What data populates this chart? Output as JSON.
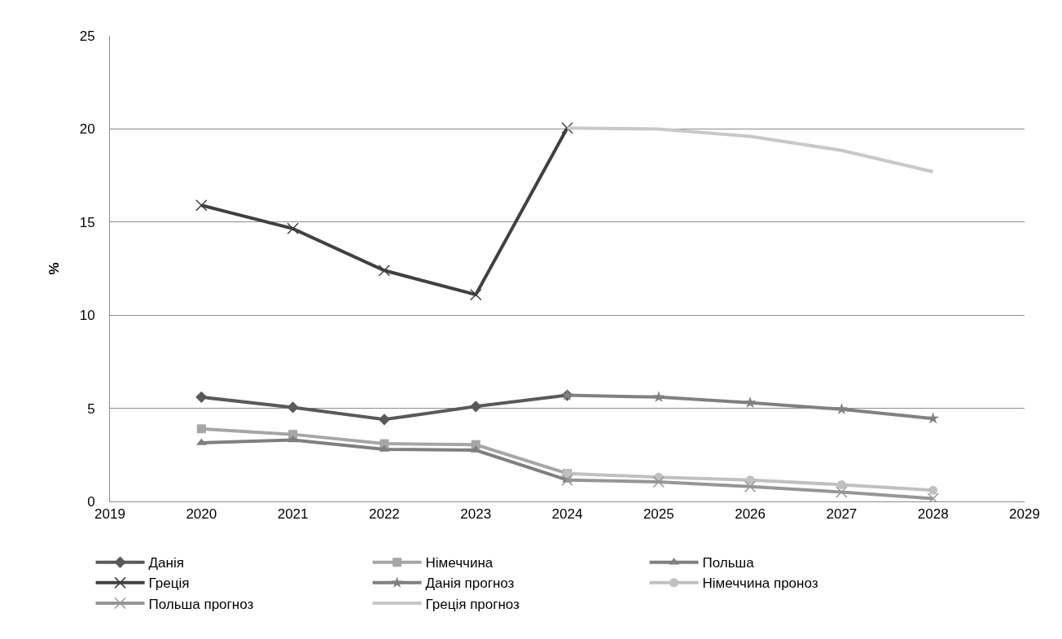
{
  "chart_data": {
    "type": "line",
    "ylabel": "%",
    "x": [
      2020,
      2021,
      2022,
      2023,
      2024,
      2025,
      2026,
      2027,
      2028
    ],
    "xlim": [
      2019,
      2029
    ],
    "xticks": [
      2019,
      2020,
      2021,
      2022,
      2023,
      2024,
      2025,
      2026,
      2027,
      2028,
      2029
    ],
    "ylim": [
      0,
      25
    ],
    "yticks": [
      0,
      5,
      10,
      15,
      20,
      25
    ],
    "grid": "y",
    "legend": "bottom",
    "line_style": "solid",
    "series": [
      {
        "name": "Данія",
        "color": "#595959",
        "marker": "diamond",
        "values": [
          5.6,
          5.05,
          4.4,
          5.1,
          5.7,
          null,
          null,
          null,
          null
        ]
      },
      {
        "name": "Німеччина",
        "color": "#a6a6a6",
        "marker": "square",
        "values": [
          3.9,
          3.6,
          3.1,
          3.05,
          1.5,
          null,
          null,
          null,
          null
        ]
      },
      {
        "name": "Польша",
        "color": "#7f7f7f",
        "marker": "triangle",
        "values": [
          3.15,
          3.3,
          2.8,
          2.75,
          1.15,
          null,
          null,
          null,
          null
        ]
      },
      {
        "name": "Греція",
        "color": "#404040",
        "marker": "cross",
        "values": [
          15.9,
          14.65,
          12.4,
          11.1,
          20.05,
          null,
          null,
          null,
          null
        ]
      },
      {
        "name": "Данія прогноз",
        "color": "#808080",
        "marker": "star",
        "values": [
          null,
          null,
          null,
          null,
          5.7,
          5.6,
          5.3,
          4.95,
          4.45
        ]
      },
      {
        "name": "Німеччина проноз",
        "color": "#c0c0c0",
        "marker": "circle",
        "values": [
          null,
          null,
          null,
          null,
          1.5,
          1.3,
          1.15,
          0.9,
          0.6
        ]
      },
      {
        "name": "Польша прогноз",
        "color": "#969696",
        "marker": "cross",
        "values": [
          null,
          null,
          null,
          null,
          1.15,
          1.05,
          0.8,
          0.5,
          0.15
        ]
      },
      {
        "name": "Греція прогноз",
        "color": "#c8c8c8",
        "marker": "none",
        "values": [
          null,
          null,
          null,
          null,
          20.05,
          20.0,
          19.6,
          18.85,
          17.7
        ]
      }
    ]
  }
}
